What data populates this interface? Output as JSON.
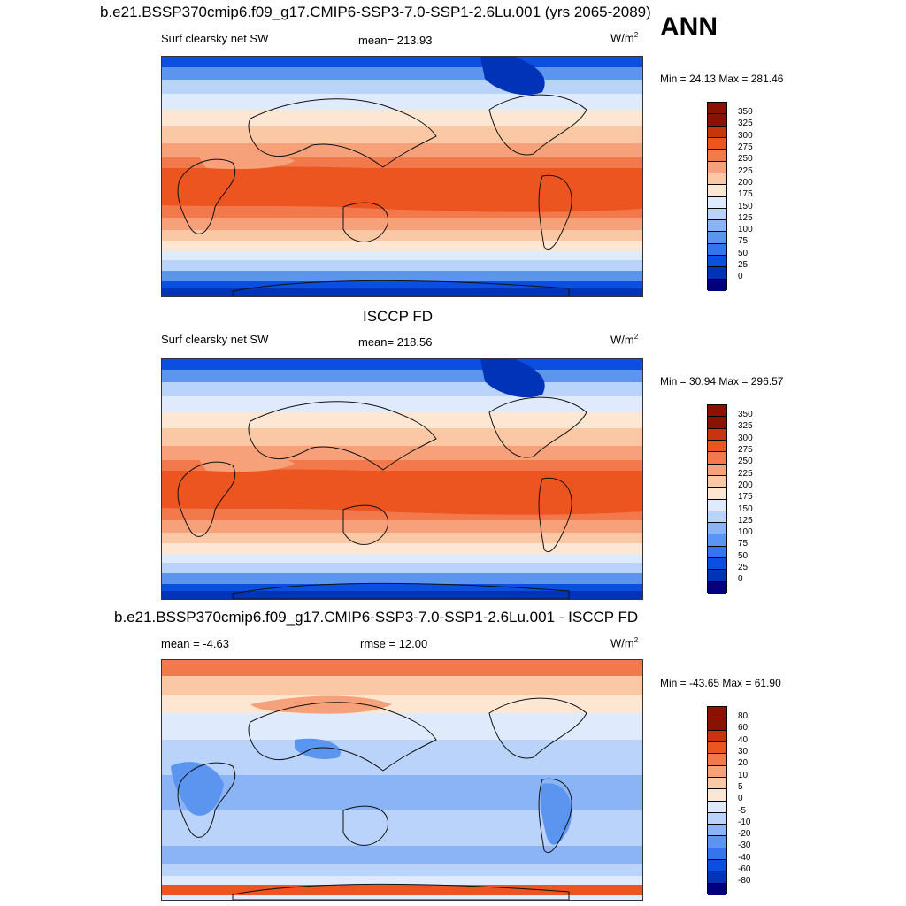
{
  "annotation": "ANN",
  "panels": [
    {
      "id": "model",
      "title": "b.e21.BSSP370cmip6.f09_g17.CMIP6-SSP3-7.0-SSP1-2.6Lu.001 (yrs 2065-2089)",
      "left_label": "Surf clearsky net SW",
      "center_label": "mean= 213.93",
      "units": "W/m",
      "units_sup": "2",
      "minmax": "Min =  24.13 Max = 281.46",
      "colorbar_labels": [
        "350",
        "325",
        "300",
        "275",
        "250",
        "225",
        "200",
        "175",
        "150",
        "125",
        "100",
        "75",
        "50",
        "25",
        "0"
      ],
      "field_kind": "abs"
    },
    {
      "id": "obs",
      "title": "ISCCP FD",
      "left_label": "Surf clearsky net SW",
      "center_label": "mean= 218.56",
      "units": "W/m",
      "units_sup": "2",
      "minmax": "Min =  30.94 Max = 296.57",
      "colorbar_labels": [
        "350",
        "325",
        "300",
        "275",
        "250",
        "225",
        "200",
        "175",
        "150",
        "125",
        "100",
        "75",
        "50",
        "25",
        "0"
      ],
      "field_kind": "abs"
    },
    {
      "id": "diff",
      "title": "b.e21.BSSP370cmip6.f09_g17.CMIP6-SSP3-7.0-SSP1-2.6Lu.001 - ISCCP FD",
      "left_label": "mean =  -4.63",
      "center_label": "rmse =  12.00",
      "units": "W/m",
      "units_sup": "2",
      "minmax": "Min = -43.65 Max =  61.90",
      "colorbar_labels": [
        "80",
        "60",
        "40",
        "30",
        "20",
        "10",
        "5",
        "0",
        "-5",
        "-10",
        "-20",
        "-30",
        "-40",
        "-60",
        "-80"
      ],
      "field_kind": "diff"
    }
  ],
  "colors": {
    "palette": [
      "#00007f",
      "#0033b8",
      "#0a4fe0",
      "#3574ef",
      "#5c95f0",
      "#8ab4f5",
      "#b9d3fa",
      "#dfeafc",
      "#fde7d3",
      "#fbc8a6",
      "#f7a17a",
      "#f2794c",
      "#ec5420",
      "#c8340e",
      "#8a1203"
    ],
    "continent_stroke": "#111111"
  }
}
